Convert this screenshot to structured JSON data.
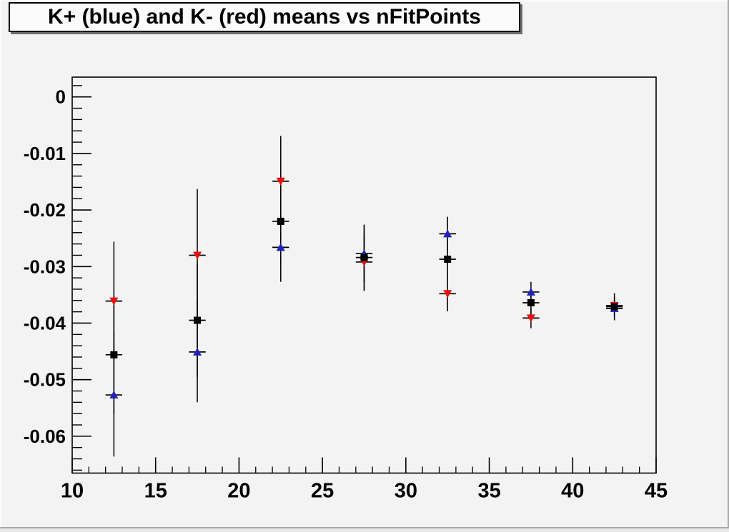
{
  "title": "K+ (blue) and K- (red) means vs nFitPoints",
  "colors": {
    "canvas_bg": "#f2f3f2",
    "frame_line": "#000000",
    "error_bar": "#000000",
    "kplus_blue": "#2222bb",
    "kminus_red": "#ee0e0e",
    "mean_black": "#000000",
    "title_fill": "#fbfbfb",
    "title_shadow": "#6e6e6e"
  },
  "chart_data": {
    "type": "scatter",
    "title": "K+ (blue) and K- (red) means vs nFitPoints",
    "xlabel": "",
    "ylabel": "",
    "grid": false,
    "legend": "none (colors described in title)",
    "x_axis": {
      "min": 10,
      "max": 45,
      "major_ticks": [
        {
          "value": 10,
          "label": "10"
        },
        {
          "value": 15,
          "label": "15"
        },
        {
          "value": 20,
          "label": "20"
        },
        {
          "value": 25,
          "label": "25"
        },
        {
          "value": 30,
          "label": "30"
        },
        {
          "value": 35,
          "label": "35"
        },
        {
          "value": 40,
          "label": "40"
        },
        {
          "value": 45,
          "label": "45"
        }
      ],
      "minor_step": 1
    },
    "y_axis": {
      "min": -0.06652,
      "max": 0.0035,
      "major_ticks": [
        {
          "value": 0,
          "label": "0"
        },
        {
          "value": -0.01,
          "label": "-0.01"
        },
        {
          "value": -0.02,
          "label": "-0.02"
        },
        {
          "value": -0.03,
          "label": "-0.03"
        },
        {
          "value": -0.04,
          "label": "-0.04"
        },
        {
          "value": -0.05,
          "label": "-0.05"
        },
        {
          "value": -0.06,
          "label": "-0.06"
        }
      ],
      "minor_step": 0.002
    },
    "series": [
      {
        "name": "K+ (blue)",
        "marker": "triangle-up",
        "color": "#2222bb",
        "points": [
          {
            "x": 12.5,
            "y": -0.0527,
            "ex": 0.5,
            "ey": 0.0109
          },
          {
            "x": 17.5,
            "y": -0.0451,
            "ex": 0.5,
            "ey": 0.0089
          },
          {
            "x": 22.5,
            "y": -0.0266,
            "ex": 0.5,
            "ey": 0.0061
          },
          {
            "x": 27.5,
            "y": -0.0277,
            "ex": 0.5,
            "ey": 0.0051
          },
          {
            "x": 32.5,
            "y": -0.0242,
            "ex": 0.5,
            "ey": 0.003
          },
          {
            "x": 37.5,
            "y": -0.0345,
            "ex": 0.5,
            "ey": 0.0018
          },
          {
            "x": 42.5,
            "y": -0.0374,
            "ex": 0.5,
            "ey": 0.0015
          }
        ]
      },
      {
        "name": "K- (red)",
        "marker": "triangle-down",
        "color": "#ee0e0e",
        "points": [
          {
            "x": 12.5,
            "y": -0.0361,
            "ex": 0.5,
            "ey": 0.0105
          },
          {
            "x": 17.5,
            "y": -0.028,
            "ex": 0.5,
            "ey": 0.0117
          },
          {
            "x": 22.5,
            "y": -0.0149,
            "ex": 0.5,
            "ey": 0.008
          },
          {
            "x": 27.5,
            "y": -0.0292,
            "ex": 0.5,
            "ey": 0.0051
          },
          {
            "x": 32.5,
            "y": -0.0348,
            "ex": 0.5,
            "ey": 0.0031
          },
          {
            "x": 37.5,
            "y": -0.0391,
            "ex": 0.5,
            "ey": 0.0018
          },
          {
            "x": 42.5,
            "y": -0.0369,
            "ex": 0.5,
            "ey": 0.0015
          }
        ]
      },
      {
        "name": "unlabeled black squares",
        "marker": "square",
        "color": "#000000",
        "points": [
          {
            "x": 12.5,
            "y": -0.0456,
            "ex": 0.5,
            "ey": 0.0105
          },
          {
            "x": 17.5,
            "y": -0.0395,
            "ex": 0.5,
            "ey": 0.01
          },
          {
            "x": 22.5,
            "y": -0.022,
            "ex": 0.5,
            "ey": 0.0075
          },
          {
            "x": 27.5,
            "y": -0.0284,
            "ex": 0.5,
            "ey": 0.0058
          },
          {
            "x": 32.5,
            "y": -0.0287,
            "ex": 0.5,
            "ey": 0.0035
          },
          {
            "x": 37.5,
            "y": -0.0364,
            "ex": 0.5,
            "ey": 0.0022
          },
          {
            "x": 42.5,
            "y": -0.0371,
            "ex": 0.5,
            "ey": 0.0024
          }
        ]
      }
    ]
  }
}
